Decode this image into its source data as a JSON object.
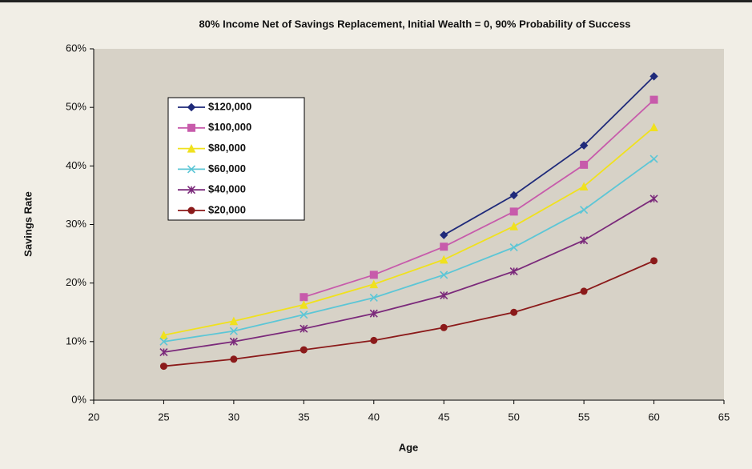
{
  "chart_data": {
    "type": "line",
    "title": "80% Income Net of Savings Replacement, Initial Wealth = 0, 90% Probability of Success",
    "x_label": "Age",
    "y_label": "Savings Rate",
    "x": [
      25,
      30,
      35,
      40,
      45,
      50,
      55,
      60
    ],
    "series": [
      {
        "name": "$120,000",
        "color": "#1f2a7a",
        "marker": "diamond",
        "values": [
          null,
          null,
          null,
          null,
          28.2,
          35,
          43.5,
          55.3
        ]
      },
      {
        "name": "$100,000",
        "color": "#c75bab",
        "marker": "square",
        "values": [
          null,
          null,
          17.6,
          21.4,
          26.2,
          32.2,
          40.2,
          51.3
        ]
      },
      {
        "name": "$80,000",
        "color": "#f0e11e",
        "marker": "triangle",
        "values": [
          11.1,
          13.5,
          16.3,
          19.8,
          24,
          29.7,
          36.5,
          46.6
        ]
      },
      {
        "name": "$60,000",
        "color": "#5cc6d6",
        "marker": "x",
        "values": [
          10,
          11.8,
          14.6,
          17.5,
          21.4,
          26.1,
          32.5,
          41.2
        ]
      },
      {
        "name": "$40,000",
        "color": "#7b2a7b",
        "marker": "star",
        "values": [
          8.2,
          10,
          12.2,
          14.8,
          17.9,
          22,
          27.3,
          34.4
        ]
      },
      {
        "name": "$20,000",
        "color": "#8b1a1a",
        "marker": "circle",
        "values": [
          5.8,
          7,
          8.6,
          10.2,
          12.4,
          15,
          18.6,
          23.8
        ]
      }
    ],
    "xlim": [
      20,
      65
    ],
    "xticks": [
      20,
      25,
      30,
      35,
      40,
      45,
      50,
      55,
      60,
      65
    ],
    "ylim": [
      0,
      60
    ],
    "yticks": [
      {
        "value": 0,
        "label": "0%"
      },
      {
        "value": 10,
        "label": "10%"
      },
      {
        "value": 20,
        "label": "20%"
      },
      {
        "value": 30,
        "label": "30%"
      },
      {
        "value": 40,
        "label": "40%"
      },
      {
        "value": 50,
        "label": "50%"
      },
      {
        "value": 60,
        "label": "60%"
      }
    ],
    "grid": false
  }
}
